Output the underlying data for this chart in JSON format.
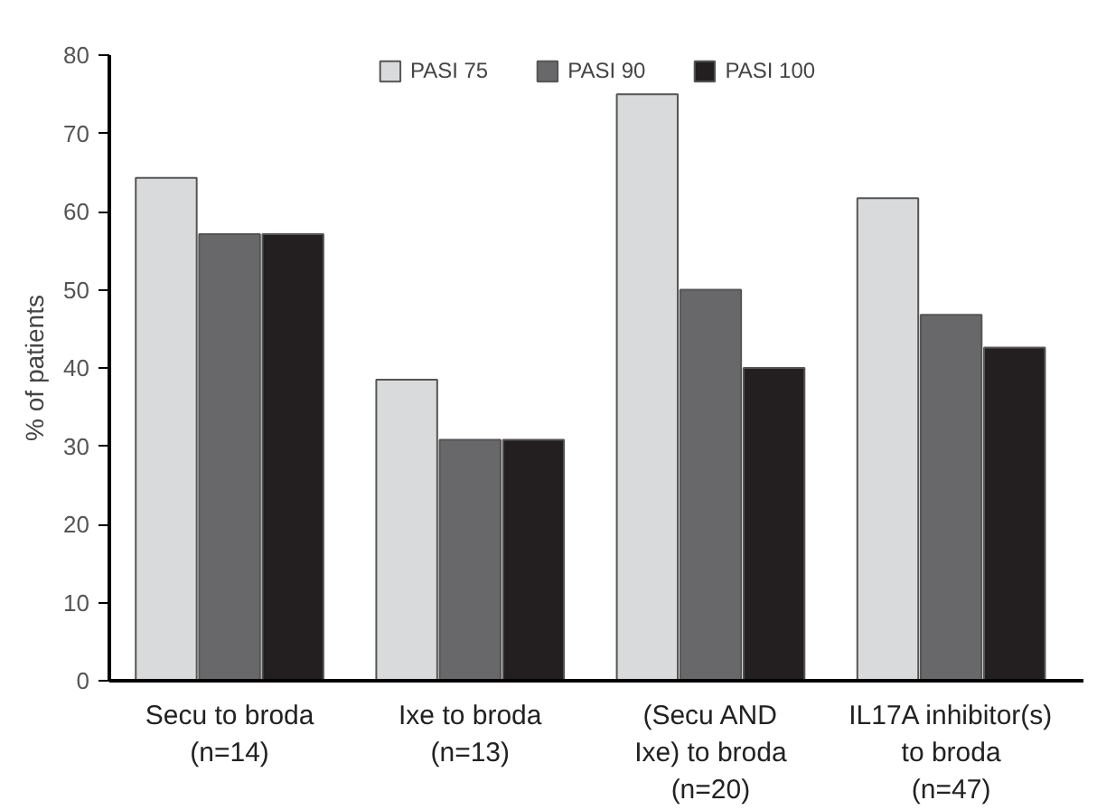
{
  "chart_data": {
    "type": "bar",
    "ylabel": "% of patients",
    "categories": [
      "Secu to broda\n(n=14)",
      "Ixe to broda\n(n=13)",
      "(Secu AND\nIxe) to broda\n(n=20)",
      "IL17A inhibitor(s)\nto broda\n(n=47)"
    ],
    "series": [
      {
        "name": "PASI 75",
        "color": "#d9dadc",
        "values": [
          64.3,
          38.5,
          75,
          61.7
        ]
      },
      {
        "name": "PASI 90",
        "color": "#68686a",
        "values": [
          57.1,
          30.8,
          50,
          46.8
        ]
      },
      {
        "name": "PASI 100",
        "color": "#231f20",
        "values": [
          57.1,
          30.8,
          40,
          42.6
        ]
      }
    ],
    "ylim": [
      0,
      80
    ],
    "yticks": [
      0,
      10,
      20,
      30,
      40,
      50,
      60,
      70,
      80
    ],
    "grid": false,
    "legend": "top"
  }
}
